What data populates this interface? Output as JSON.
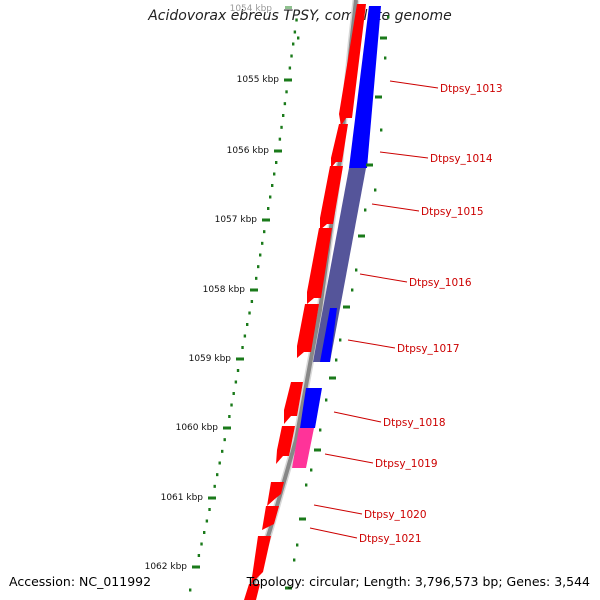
{
  "title": "Acidovorax ebreus TPSY, complete genome",
  "accession_label": "Accession: NC_011992",
  "topology_label": "Topology: circular; Length: 3,796,573 bp; Genes: 3,544",
  "scale_unit": "kbp",
  "ticks": [
    "1054",
    "1055",
    "1056",
    "1057",
    "1058",
    "1059",
    "1060",
    "1061",
    "1062"
  ],
  "genes": [
    "Dtpsy_1013",
    "Dtpsy_1014",
    "Dtpsy_1015",
    "Dtpsy_1016",
    "Dtpsy_1017",
    "Dtpsy_1018",
    "Dtpsy_1019",
    "Dtpsy_1020",
    "Dtpsy_1021"
  ],
  "colors": {
    "backbone": "#888888",
    "forward_cds": "#ff0000",
    "reverse_cds": "#0000ff",
    "overlap": "#55559a",
    "highlight": "#ff3399",
    "tick": "#1a7a1a",
    "gene_label": "#cc0000"
  }
}
